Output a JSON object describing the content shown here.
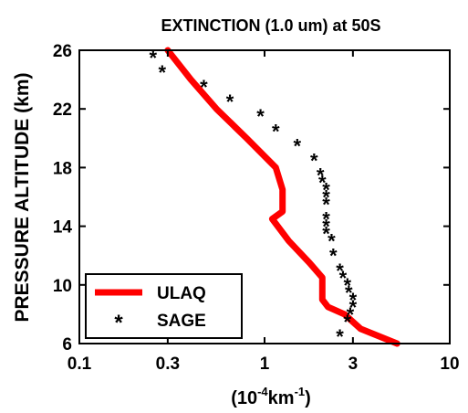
{
  "chart_data": {
    "type": "line",
    "title": "EXTINCTION  (1.0 um) at 50S",
    "xlabel": {
      "base": "(10",
      "exp1": "-4",
      "mid": "km",
      "exp2": "-1",
      "end": ")"
    },
    "ylabel": "PRESSURE  ALTITUDE  (km)",
    "x_scale": "log",
    "xlim": [
      0.1,
      10
    ],
    "ylim": [
      6,
      26
    ],
    "x_ticks": [
      {
        "value": 0.1,
        "label": "0.1"
      },
      {
        "value": 0.3,
        "label": "0.3"
      },
      {
        "value": 1,
        "label": "1"
      },
      {
        "value": 3,
        "label": "3"
      },
      {
        "value": 10,
        "label": "10"
      }
    ],
    "y_ticks": [
      {
        "value": 6,
        "label": "6"
      },
      {
        "value": 10,
        "label": "10"
      },
      {
        "value": 14,
        "label": "14"
      },
      {
        "value": 18,
        "label": "18"
      },
      {
        "value": 22,
        "label": "22"
      },
      {
        "value": 26,
        "label": "26"
      }
    ],
    "legend_position": "bottom-left",
    "series": [
      {
        "name": "ULAQ",
        "style": "line",
        "color": "#ff0000",
        "points": [
          [
            0.3,
            26
          ],
          [
            0.4,
            24
          ],
          [
            0.55,
            22
          ],
          [
            0.8,
            20
          ],
          [
            1.15,
            18
          ],
          [
            1.25,
            16.5
          ],
          [
            1.25,
            15
          ],
          [
            1.1,
            14.5
          ],
          [
            1.35,
            13
          ],
          [
            1.75,
            11.5
          ],
          [
            2.05,
            10.5
          ],
          [
            2.05,
            9
          ],
          [
            2.2,
            8.5
          ],
          [
            2.7,
            8
          ],
          [
            3.3,
            7
          ],
          [
            5.2,
            6
          ]
        ]
      },
      {
        "name": "SAGE",
        "style": "marker",
        "marker": "*",
        "color": "#000000",
        "points": [
          [
            0.25,
            25.5
          ],
          [
            0.28,
            24.5
          ],
          [
            0.47,
            23.5
          ],
          [
            0.65,
            22.5
          ],
          [
            0.95,
            21.5
          ],
          [
            1.15,
            20.5
          ],
          [
            1.5,
            19.5
          ],
          [
            1.85,
            18.5
          ],
          [
            2.0,
            17.5
          ],
          [
            2.05,
            17
          ],
          [
            2.15,
            16.5
          ],
          [
            2.15,
            16
          ],
          [
            2.15,
            15.5
          ],
          [
            2.15,
            14.5
          ],
          [
            2.15,
            14
          ],
          [
            2.15,
            13.5
          ],
          [
            2.3,
            13
          ],
          [
            2.35,
            12
          ],
          [
            2.55,
            11
          ],
          [
            2.65,
            10.5
          ],
          [
            2.8,
            10
          ],
          [
            2.85,
            9.5
          ],
          [
            3.0,
            9
          ],
          [
            3.0,
            8.5
          ],
          [
            2.9,
            8
          ],
          [
            2.8,
            7.5
          ],
          [
            2.55,
            6.5
          ]
        ]
      }
    ]
  }
}
